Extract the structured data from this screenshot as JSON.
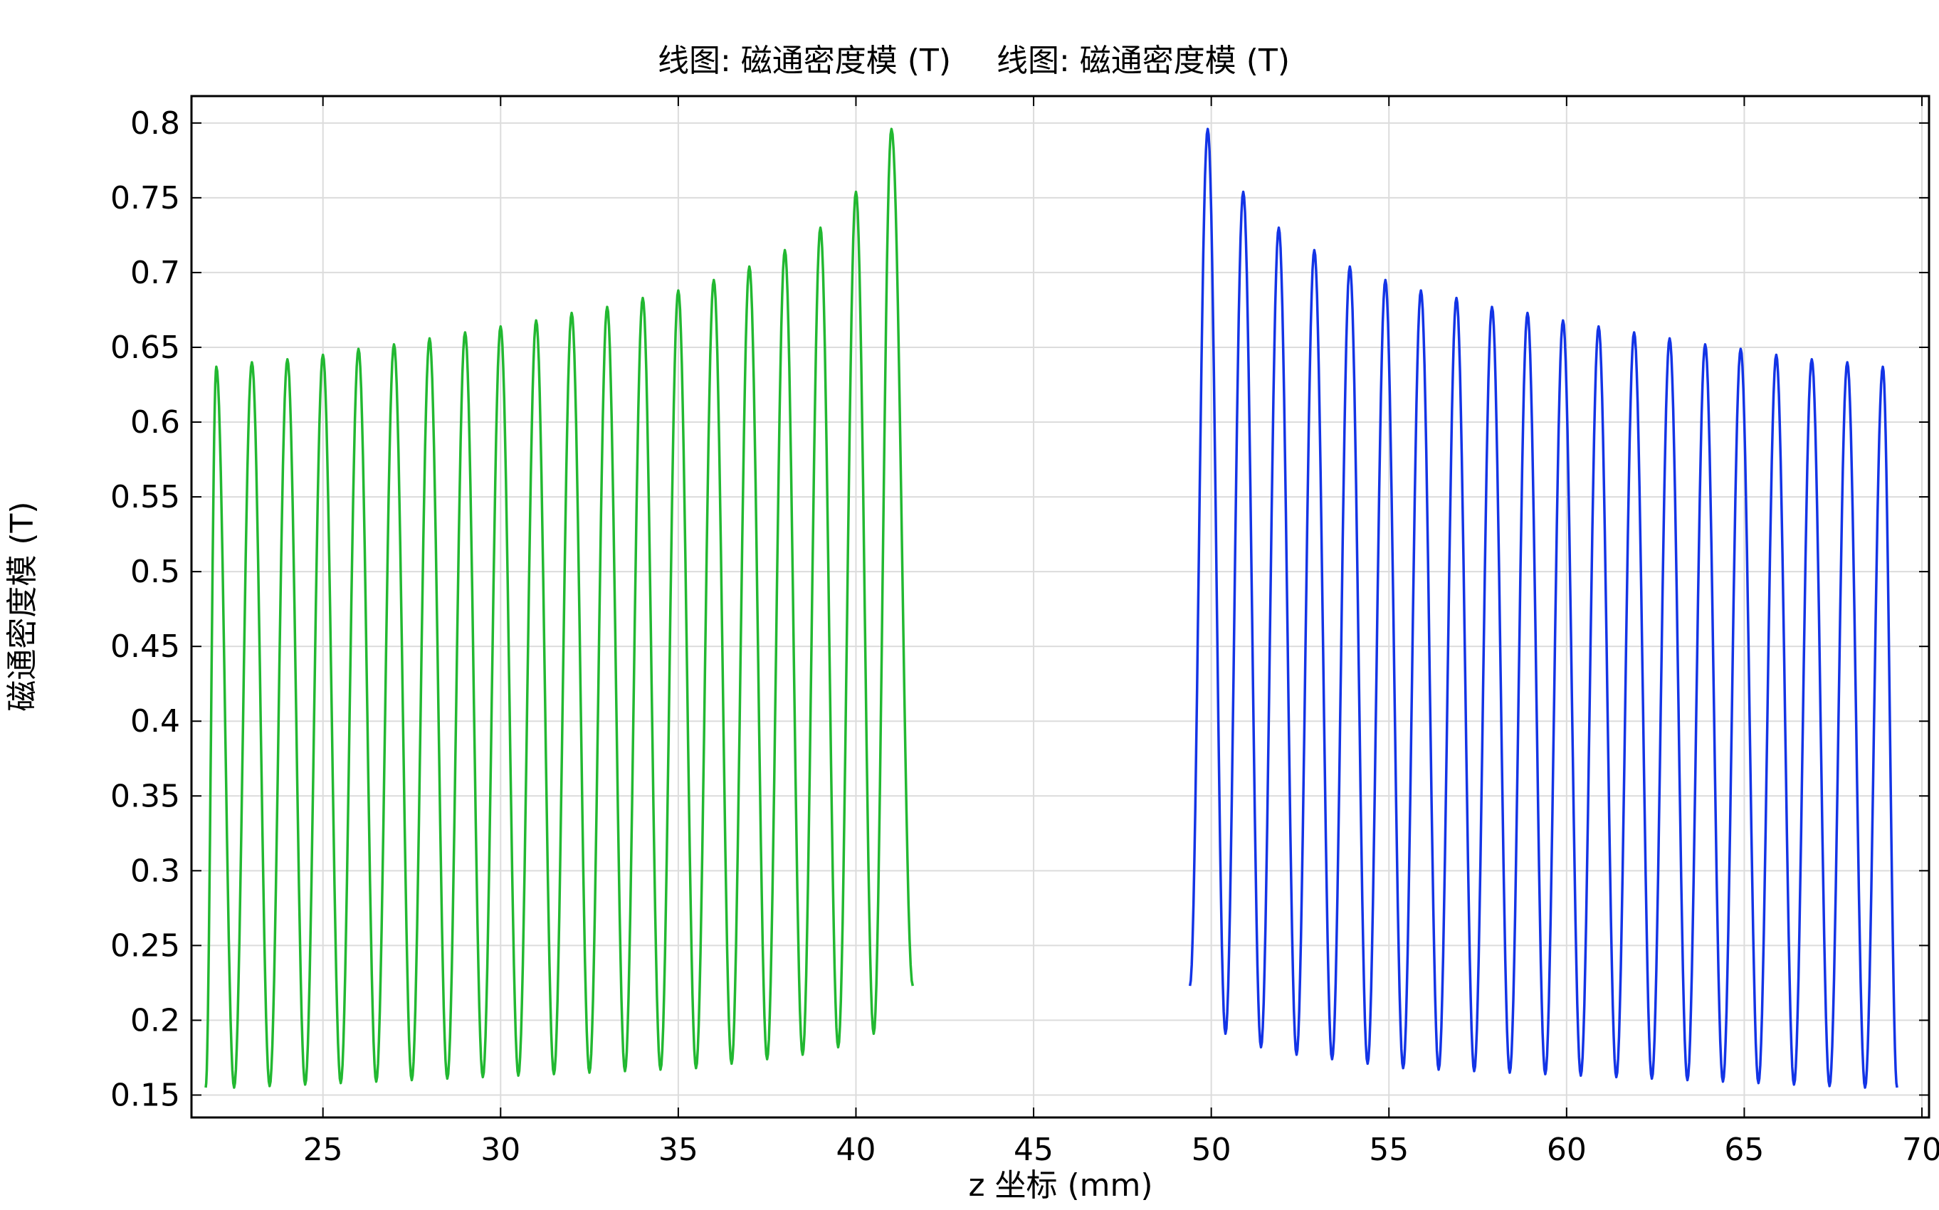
{
  "chart_data": {
    "type": "line",
    "title_parts": [
      "线图: 磁通密度模 (T)",
      "线图: 磁通密度模 (T)"
    ],
    "xlabel": "z 坐标 (mm)",
    "ylabel": "磁通密度模 (T)",
    "xlim": [
      21.3,
      70.2
    ],
    "ylim": [
      0.135,
      0.818
    ],
    "xticks": [
      25,
      30,
      35,
      40,
      45,
      50,
      55,
      60,
      65,
      70
    ],
    "yticks": [
      0.15,
      0.2,
      0.25,
      0.3,
      0.35,
      0.4,
      0.45,
      0.5,
      0.55,
      0.6,
      0.65,
      0.7,
      0.75,
      0.8
    ],
    "grid": true,
    "series": [
      {
        "color": "#22b831",
        "start": [
          21.7,
          0.155
        ],
        "end": [
          41.6,
          0.223
        ],
        "peaks_x": [
          22.0,
          23.0,
          24.0,
          25.0,
          26.0,
          27.0,
          28.0,
          29.0,
          30.0,
          31.0,
          32.0,
          33.0,
          34.0,
          35.0,
          36.0,
          37.0,
          38.0,
          39.0,
          40.0,
          41.0
        ],
        "peaks_y": [
          0.637,
          0.64,
          0.642,
          0.645,
          0.649,
          0.652,
          0.656,
          0.66,
          0.664,
          0.668,
          0.673,
          0.677,
          0.683,
          0.688,
          0.695,
          0.704,
          0.715,
          0.73,
          0.754,
          0.796
        ],
        "troughs_x": [
          22.5,
          23.5,
          24.5,
          25.5,
          26.5,
          27.5,
          28.5,
          29.5,
          30.5,
          31.5,
          32.5,
          33.5,
          34.5,
          35.5,
          36.5,
          37.5,
          38.5,
          39.5,
          40.5
        ],
        "troughs_y": [
          0.155,
          0.156,
          0.157,
          0.158,
          0.159,
          0.16,
          0.161,
          0.162,
          0.163,
          0.164,
          0.165,
          0.166,
          0.167,
          0.168,
          0.171,
          0.174,
          0.177,
          0.182,
          0.191
        ]
      },
      {
        "color": "#1334e6",
        "start": [
          49.4,
          0.223
        ],
        "end": [
          69.3,
          0.155
        ],
        "peaks_x": [
          49.9,
          50.9,
          51.9,
          52.9,
          53.9,
          54.9,
          55.9,
          56.9,
          57.9,
          58.9,
          59.9,
          60.9,
          61.9,
          62.9,
          63.9,
          64.9,
          65.9,
          66.9,
          67.9,
          68.9
        ],
        "peaks_y": [
          0.796,
          0.754,
          0.73,
          0.715,
          0.704,
          0.695,
          0.688,
          0.683,
          0.677,
          0.673,
          0.668,
          0.664,
          0.66,
          0.656,
          0.652,
          0.649,
          0.645,
          0.642,
          0.64,
          0.637
        ],
        "troughs_x": [
          50.4,
          51.4,
          52.4,
          53.4,
          54.4,
          55.4,
          56.4,
          57.4,
          58.4,
          59.4,
          60.4,
          61.4,
          62.4,
          63.4,
          64.4,
          65.4,
          66.4,
          67.4,
          68.4
        ],
        "troughs_y": [
          0.191,
          0.182,
          0.177,
          0.174,
          0.171,
          0.168,
          0.167,
          0.166,
          0.165,
          0.164,
          0.163,
          0.162,
          0.161,
          0.16,
          0.159,
          0.158,
          0.157,
          0.156,
          0.155
        ]
      }
    ]
  }
}
